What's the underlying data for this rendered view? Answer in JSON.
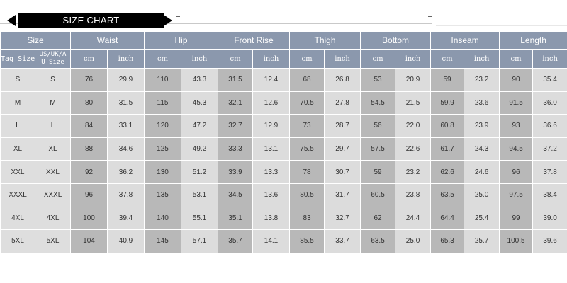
{
  "title": "SIZE CHART",
  "header": {
    "size": "Size",
    "groups": [
      "Waist",
      "Hip",
      "Front Rise",
      "Thigh",
      "Bottom",
      "Inseam",
      "Length"
    ],
    "tag_size": "Tag Size",
    "us_size_line1": "US/UK/A",
    "us_size_line2": "U Size",
    "cm": "cm",
    "inch": "inch"
  },
  "rows": [
    {
      "tag": "S",
      "us": "S",
      "vals": [
        "76",
        "29.9",
        "110",
        "43.3",
        "31.5",
        "12.4",
        "68",
        "26.8",
        "53",
        "20.9",
        "59",
        "23.2",
        "90",
        "35.4"
      ]
    },
    {
      "tag": "M",
      "us": "M",
      "vals": [
        "80",
        "31.5",
        "115",
        "45.3",
        "32.1",
        "12.6",
        "70.5",
        "27.8",
        "54.5",
        "21.5",
        "59.9",
        "23.6",
        "91.5",
        "36.0"
      ]
    },
    {
      "tag": "L",
      "us": "L",
      "vals": [
        "84",
        "33.1",
        "120",
        "47.2",
        "32.7",
        "12.9",
        "73",
        "28.7",
        "56",
        "22.0",
        "60.8",
        "23.9",
        "93",
        "36.6"
      ]
    },
    {
      "tag": "XL",
      "us": "XL",
      "vals": [
        "88",
        "34.6",
        "125",
        "49.2",
        "33.3",
        "13.1",
        "75.5",
        "29.7",
        "57.5",
        "22.6",
        "61.7",
        "24.3",
        "94.5",
        "37.2"
      ]
    },
    {
      "tag": "XXL",
      "us": "XXL",
      "vals": [
        "92",
        "36.2",
        "130",
        "51.2",
        "33.9",
        "13.3",
        "78",
        "30.7",
        "59",
        "23.2",
        "62.6",
        "24.6",
        "96",
        "37.8"
      ]
    },
    {
      "tag": "XXXL",
      "us": "XXXL",
      "vals": [
        "96",
        "37.8",
        "135",
        "53.1",
        "34.5",
        "13.6",
        "80.5",
        "31.7",
        "60.5",
        "23.8",
        "63.5",
        "25.0",
        "97.5",
        "38.4"
      ]
    },
    {
      "tag": "4XL",
      "us": "4XL",
      "vals": [
        "100",
        "39.4",
        "140",
        "55.1",
        "35.1",
        "13.8",
        "83",
        "32.7",
        "62",
        "24.4",
        "64.4",
        "25.4",
        "99",
        "39.0"
      ]
    },
    {
      "tag": "5XL",
      "us": "5XL",
      "vals": [
        "104",
        "40.9",
        "145",
        "57.1",
        "35.7",
        "14.1",
        "85.5",
        "33.7",
        "63.5",
        "25.0",
        "65.3",
        "25.7",
        "100.5",
        "39.6"
      ]
    }
  ]
}
